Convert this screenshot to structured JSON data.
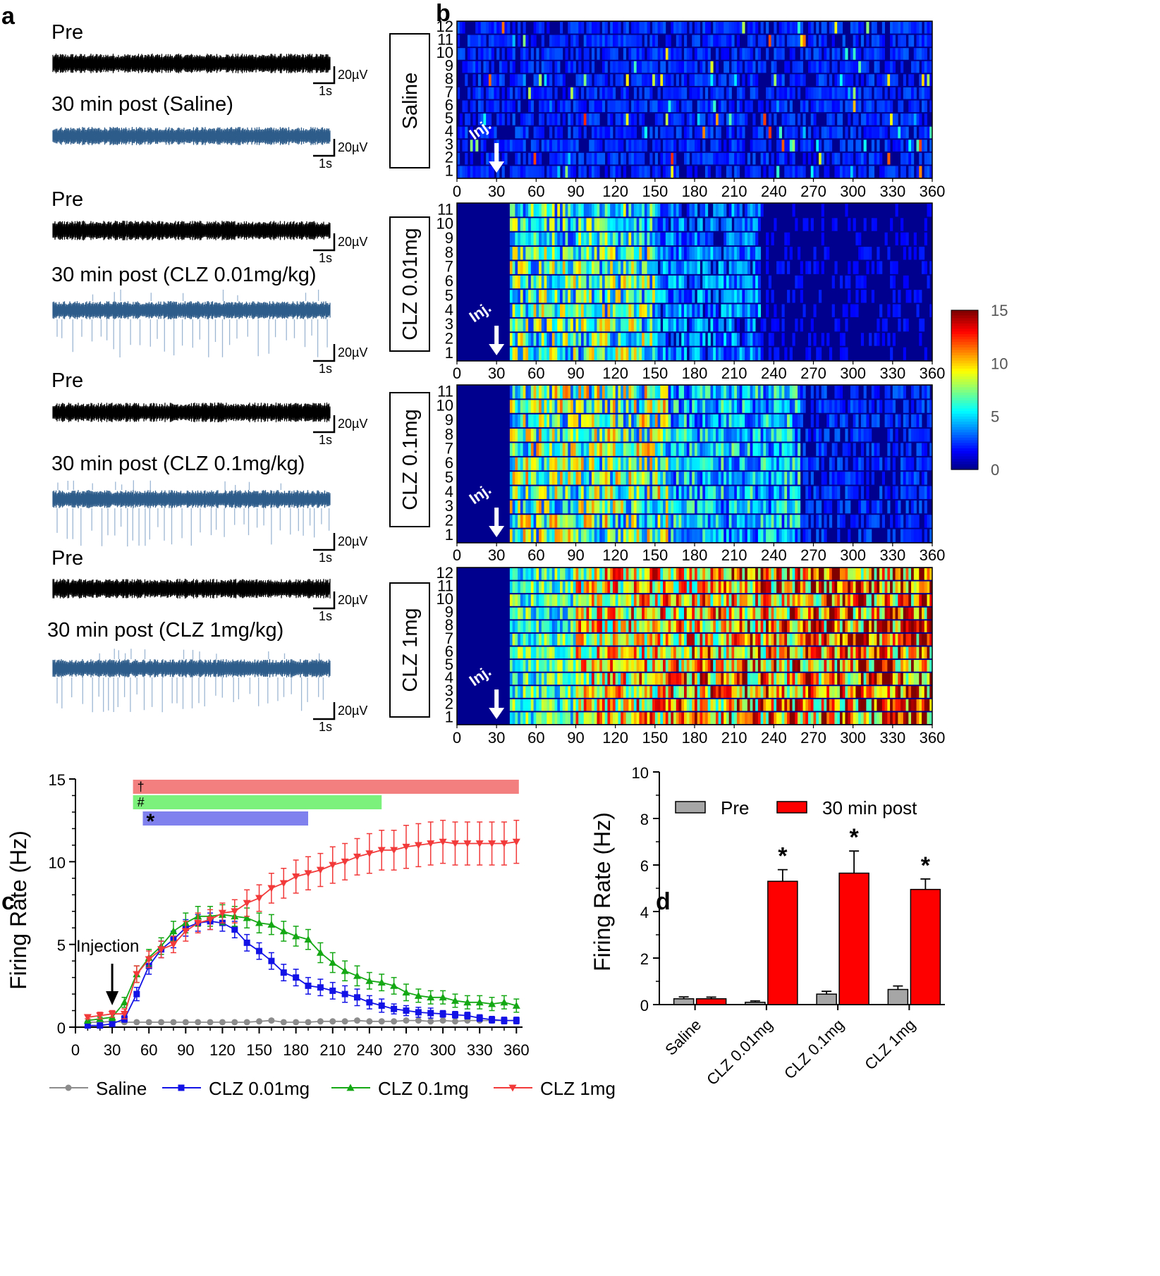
{
  "panels": {
    "a": "a",
    "b": "b",
    "c": "c",
    "d": "d"
  },
  "panel_a": {
    "traces": [
      {
        "pre_label": "Pre",
        "post_label": "30 min post (Saline)",
        "spikes": 0
      },
      {
        "pre_label": "Pre",
        "post_label": "30 min post (CLZ 0.01mg/kg)",
        "spikes": 1
      },
      {
        "pre_label": "Pre",
        "post_label": "30 min post (CLZ 0.1mg/kg)",
        "spikes": 1
      },
      {
        "pre_label": "Pre",
        "post_label": "30 min post (CLZ 1mg/kg)",
        "spikes": 1
      }
    ],
    "scale_y_label": "20µV",
    "scale_x_label": "1s",
    "colors": {
      "pre": "#000000",
      "post": "#2e5c8a",
      "post_spike": "#9db7d3"
    }
  },
  "panel_b": {
    "x_ticks": [
      "0",
      "30",
      "60",
      "90",
      "120",
      "150",
      "180",
      "210",
      "240",
      "270",
      "300",
      "330",
      "360"
    ],
    "injection_label": "Inj.",
    "colorbar_ticks": [
      "15",
      "10",
      "5",
      "0"
    ],
    "heatmaps": [
      {
        "label": "Saline",
        "rows": 12,
        "row_labels": [
          "12",
          "11",
          "10",
          "9",
          "8",
          "7",
          "6",
          "5",
          "4",
          "3",
          "2",
          "1"
        ],
        "profile": "saline"
      },
      {
        "label": "CLZ 0.01mg",
        "rows": 11,
        "row_labels": [
          "11",
          "10",
          "9",
          "8",
          "7",
          "6",
          "5",
          "4",
          "3",
          "2",
          "1"
        ],
        "profile": "low"
      },
      {
        "label": "CLZ 0.1mg",
        "rows": 11,
        "row_labels": [
          "11",
          "10",
          "9",
          "8",
          "7",
          "6",
          "5",
          "4",
          "3",
          "2",
          "1"
        ],
        "profile": "mid"
      },
      {
        "label": "CLZ 1mg",
        "rows": 12,
        "row_labels": [
          "12",
          "11",
          "10",
          "9",
          "8",
          "7",
          "6",
          "5",
          "4",
          "3",
          "2",
          "1"
        ],
        "profile": "high"
      }
    ]
  },
  "chart_data": [
    {
      "type": "line",
      "panel": "c",
      "ylabel": "Firing Rate (Hz)",
      "xlabel": "",
      "xlim": [
        0,
        365
      ],
      "ylim": [
        0,
        15
      ],
      "x_ticks": [
        "0",
        "30",
        "60",
        "90",
        "120",
        "150",
        "180",
        "210",
        "240",
        "270",
        "300",
        "330",
        "360"
      ],
      "y_ticks": [
        "0",
        "5",
        "10",
        "15"
      ],
      "annotation": "Injection",
      "significance_marks": [
        {
          "symbol": "†",
          "x_start": 47,
          "x_end": 362,
          "color": "#f47f7f"
        },
        {
          "symbol": "#",
          "x_start": 47,
          "x_end": 250,
          "color": "#7cf27c"
        },
        {
          "symbol": "*",
          "x_start": 55,
          "x_end": 190,
          "color": "#8080ee"
        }
      ],
      "x": [
        10,
        20,
        30,
        40,
        50,
        60,
        70,
        80,
        90,
        100,
        110,
        120,
        130,
        140,
        150,
        160,
        170,
        180,
        190,
        200,
        210,
        220,
        230,
        240,
        250,
        260,
        270,
        280,
        290,
        300,
        310,
        320,
        330,
        340,
        350,
        360
      ],
      "series": [
        {
          "name": "Saline",
          "color": "#8c8c8c",
          "marker": "circle",
          "values": [
            0.3,
            0.3,
            0.35,
            0.3,
            0.3,
            0.3,
            0.3,
            0.3,
            0.3,
            0.3,
            0.3,
            0.3,
            0.3,
            0.3,
            0.35,
            0.4,
            0.3,
            0.3,
            0.3,
            0.35,
            0.35,
            0.35,
            0.4,
            0.35,
            0.35,
            0.35,
            0.4,
            0.4,
            0.35,
            0.4,
            0.35,
            0.4,
            0.4,
            0.4,
            0.4,
            0.4
          ],
          "errors": [
            0.05,
            0.05,
            0.05,
            0.05,
            0.05,
            0.05,
            0.05,
            0.05,
            0.05,
            0.05,
            0.05,
            0.05,
            0.05,
            0.05,
            0.05,
            0.08,
            0.05,
            0.05,
            0.05,
            0.05,
            0.05,
            0.05,
            0.05,
            0.05,
            0.05,
            0.05,
            0.05,
            0.05,
            0.05,
            0.05,
            0.05,
            0.05,
            0.05,
            0.05,
            0.05,
            0.05
          ]
        },
        {
          "name": "CLZ 0.01mg",
          "color": "#1212e6",
          "marker": "square",
          "values": [
            0.1,
            0.1,
            0.2,
            0.5,
            2.0,
            3.7,
            4.7,
            5.3,
            6.0,
            6.3,
            6.4,
            6.3,
            5.9,
            5.1,
            4.6,
            4.0,
            3.3,
            3.0,
            2.5,
            2.4,
            2.2,
            2.0,
            1.8,
            1.5,
            1.3,
            1.1,
            1.0,
            0.9,
            0.85,
            0.8,
            0.75,
            0.7,
            0.55,
            0.45,
            0.4,
            0.4
          ],
          "errors": [
            0.05,
            0.05,
            0.1,
            0.2,
            0.4,
            0.5,
            0.5,
            0.5,
            0.5,
            0.5,
            0.5,
            0.5,
            0.5,
            0.5,
            0.5,
            0.5,
            0.5,
            0.5,
            0.5,
            0.5,
            0.5,
            0.5,
            0.5,
            0.4,
            0.4,
            0.3,
            0.3,
            0.3,
            0.3,
            0.2,
            0.2,
            0.2,
            0.2,
            0.2,
            0.2,
            0.2
          ]
        },
        {
          "name": "CLZ 0.1mg",
          "color": "#15a815",
          "marker": "triangle-up",
          "values": [
            0.4,
            0.5,
            0.6,
            1.5,
            3.2,
            4.2,
            4.9,
            5.8,
            6.3,
            6.7,
            6.7,
            6.8,
            6.7,
            6.6,
            6.3,
            6.2,
            5.8,
            5.5,
            5.3,
            4.5,
            3.9,
            3.4,
            3.1,
            2.8,
            2.7,
            2.5,
            2.1,
            1.9,
            1.8,
            1.8,
            1.6,
            1.5,
            1.5,
            1.4,
            1.5,
            1.3
          ],
          "errors": [
            0.1,
            0.1,
            0.2,
            0.3,
            0.5,
            0.5,
            0.5,
            0.6,
            0.6,
            0.6,
            0.6,
            0.6,
            0.6,
            0.6,
            0.6,
            0.6,
            0.6,
            0.6,
            0.6,
            0.6,
            0.6,
            0.6,
            0.6,
            0.5,
            0.5,
            0.5,
            0.5,
            0.4,
            0.4,
            0.4,
            0.4,
            0.4,
            0.4,
            0.4,
            0.4,
            0.4
          ]
        },
        {
          "name": "CLZ 1mg",
          "color": "#f23a3a",
          "marker": "triangle-down",
          "values": [
            0.6,
            0.7,
            0.8,
            0.8,
            3.2,
            4.1,
            4.7,
            5.0,
            5.8,
            6.3,
            6.5,
            6.9,
            7.0,
            7.5,
            7.8,
            8.4,
            8.7,
            9.1,
            9.3,
            9.5,
            9.8,
            10.0,
            10.3,
            10.5,
            10.7,
            10.7,
            10.9,
            11.0,
            11.1,
            11.2,
            11.1,
            11.1,
            11.1,
            11.1,
            11.1,
            11.2
          ],
          "errors": [
            0.1,
            0.2,
            0.2,
            0.3,
            0.5,
            0.5,
            0.5,
            0.5,
            0.6,
            0.6,
            0.6,
            0.6,
            0.7,
            0.8,
            0.8,
            0.9,
            0.9,
            1.0,
            1.0,
            1.0,
            1.1,
            1.1,
            1.1,
            1.2,
            1.2,
            1.2,
            1.3,
            1.3,
            1.3,
            1.3,
            1.3,
            1.3,
            1.3,
            1.3,
            1.3,
            1.3
          ]
        }
      ]
    },
    {
      "type": "bar",
      "panel": "d",
      "ylabel": "Firing Rate (Hz)",
      "xlabel": "",
      "ylim": [
        0,
        10
      ],
      "y_ticks": [
        "0",
        "2",
        "4",
        "6",
        "8",
        "10"
      ],
      "categories": [
        "Saline",
        "CLZ 0.01mg",
        "CLZ 0.1mg",
        "CLZ 1mg"
      ],
      "series": [
        {
          "name": "Pre",
          "color": "#a6a6a6",
          "values": [
            0.25,
            0.1,
            0.45,
            0.65
          ],
          "errors": [
            0.08,
            0.06,
            0.12,
            0.15
          ]
        },
        {
          "name": "30 min post",
          "color": "#ff0000",
          "values": [
            0.25,
            5.3,
            5.65,
            4.95
          ],
          "errors": [
            0.07,
            0.5,
            0.95,
            0.45
          ]
        }
      ],
      "significance": [
        "",
        "*",
        "*",
        "*"
      ]
    }
  ]
}
